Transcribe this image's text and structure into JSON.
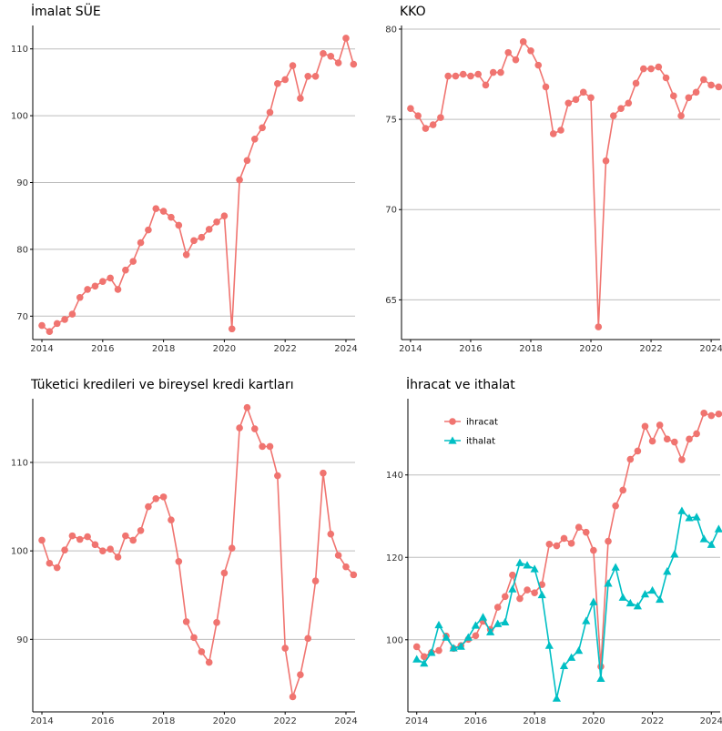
{
  "colors": {
    "ihracat": "#F07470",
    "ithalat": "#00BFC4",
    "grid": "#bdbdbd"
  },
  "chart_data": [
    {
      "type": "line",
      "title": "İmalat SÜE",
      "xlabel": "",
      "ylabel": "",
      "xlim": [
        2013.7,
        2024.3
      ],
      "ylim": [
        66.5,
        113.5
      ],
      "xticks": [
        2014,
        2016,
        2018,
        2020,
        2022,
        2024
      ],
      "yticks": [
        70,
        80,
        90,
        100,
        110
      ],
      "grid": "horizontal",
      "series": [
        {
          "color": "#F07470",
          "marker": "circle",
          "x": [
            2014.0,
            2014.25,
            2014.5,
            2014.75,
            2015.0,
            2015.25,
            2015.5,
            2015.75,
            2016.0,
            2016.25,
            2016.5,
            2016.75,
            2017.0,
            2017.25,
            2017.5,
            2017.75,
            2018.0,
            2018.25,
            2018.5,
            2018.75,
            2019.0,
            2019.25,
            2019.5,
            2019.75,
            2020.0,
            2020.25,
            2020.5,
            2020.75,
            2021.0,
            2021.25,
            2021.5,
            2021.75,
            2022.0,
            2022.25,
            2022.5,
            2022.75,
            2023.0,
            2023.25,
            2023.5,
            2023.75,
            2024.0,
            2024.25
          ],
          "values": [
            68.6,
            67.7,
            68.9,
            69.5,
            70.3,
            72.8,
            74.0,
            74.5,
            75.2,
            75.7,
            74.0,
            76.9,
            78.2,
            81.0,
            82.9,
            86.1,
            85.7,
            84.8,
            83.6,
            79.2,
            81.3,
            81.8,
            83.0,
            84.1,
            85.0,
            68.1,
            90.4,
            93.3,
            96.5,
            98.2,
            100.5,
            104.8,
            105.4,
            107.5,
            102.6,
            105.9,
            105.9,
            109.3,
            108.9,
            107.9,
            111.6,
            107.7
          ]
        }
      ]
    },
    {
      "type": "line",
      "title": "KKO",
      "xlabel": "",
      "ylabel": "",
      "xlim": [
        2013.7,
        2024.3
      ],
      "ylim": [
        62.8,
        80.2
      ],
      "xticks": [
        2014,
        2016,
        2018,
        2020,
        2022,
        2024
      ],
      "yticks": [
        65,
        70,
        75,
        80
      ],
      "grid": "horizontal",
      "series": [
        {
          "color": "#F07470",
          "marker": "circle",
          "x": [
            2014.0,
            2014.25,
            2014.5,
            2014.75,
            2015.0,
            2015.25,
            2015.5,
            2015.75,
            2016.0,
            2016.25,
            2016.5,
            2016.75,
            2017.0,
            2017.25,
            2017.5,
            2017.75,
            2018.0,
            2018.25,
            2018.5,
            2018.75,
            2019.0,
            2019.25,
            2019.5,
            2019.75,
            2020.0,
            2020.25,
            2020.5,
            2020.75,
            2021.0,
            2021.25,
            2021.5,
            2021.75,
            2022.0,
            2022.25,
            2022.5,
            2022.75,
            2023.0,
            2023.25,
            2023.5,
            2023.75,
            2024.0,
            2024.25
          ],
          "values": [
            75.6,
            75.2,
            74.5,
            74.7,
            75.1,
            77.4,
            77.4,
            77.5,
            77.4,
            77.5,
            76.9,
            77.6,
            77.6,
            78.7,
            78.3,
            79.3,
            78.8,
            78.0,
            76.8,
            74.2,
            74.4,
            75.9,
            76.1,
            76.5,
            76.2,
            63.5,
            72.7,
            75.2,
            75.6,
            75.9,
            77.0,
            77.8,
            77.8,
            77.9,
            77.3,
            76.3,
            75.2,
            76.2,
            76.5,
            77.2,
            76.9,
            76.8
          ]
        }
      ]
    },
    {
      "type": "line",
      "title": "Tüketici kredileri ve bireysel kredi kartları",
      "xlabel": "",
      "ylabel": "",
      "xlim": [
        2013.7,
        2024.3
      ],
      "ylim": [
        81.8,
        117.2
      ],
      "xticks": [
        2014,
        2016,
        2018,
        2020,
        2022,
        2024
      ],
      "yticks": [
        90,
        100,
        110
      ],
      "grid": "horizontal",
      "series": [
        {
          "color": "#F07470",
          "marker": "circle",
          "x": [
            2014.0,
            2014.25,
            2014.5,
            2014.75,
            2015.0,
            2015.25,
            2015.5,
            2015.75,
            2016.0,
            2016.25,
            2016.5,
            2016.75,
            2017.0,
            2017.25,
            2017.5,
            2017.75,
            2018.0,
            2018.25,
            2018.5,
            2018.75,
            2019.0,
            2019.25,
            2019.5,
            2019.75,
            2020.0,
            2020.25,
            2020.5,
            2020.75,
            2021.0,
            2021.25,
            2021.5,
            2021.75,
            2022.0,
            2022.25,
            2022.5,
            2022.75,
            2023.0,
            2023.25,
            2023.5,
            2023.75,
            2024.0,
            2024.25
          ],
          "values": [
            101.2,
            98.6,
            98.1,
            100.1,
            101.7,
            101.3,
            101.6,
            100.7,
            100.0,
            100.2,
            99.3,
            101.7,
            101.2,
            102.3,
            105.0,
            105.9,
            106.1,
            103.5,
            98.8,
            92.0,
            90.2,
            88.6,
            87.4,
            91.9,
            97.5,
            100.3,
            113.9,
            116.2,
            113.8,
            111.8,
            111.8,
            108.5,
            89.0,
            83.5,
            86.0,
            90.1,
            96.6,
            108.8,
            101.9,
            99.5,
            98.2,
            97.3
          ]
        }
      ]
    },
    {
      "type": "line",
      "title": "İhracat ve ithalat",
      "xlabel": "",
      "ylabel": "",
      "xlim": [
        2013.7,
        2024.3
      ],
      "ylim": [
        82.5,
        158.5
      ],
      "xticks": [
        2014,
        2016,
        2018,
        2020,
        2022,
        2024
      ],
      "yticks": [
        100,
        120,
        140
      ],
      "grid": "horizontal",
      "legend": "top-left",
      "series": [
        {
          "name": "ihracat",
          "color": "#F07470",
          "marker": "circle",
          "x": [
            2014.0,
            2014.25,
            2014.5,
            2014.75,
            2015.0,
            2015.25,
            2015.5,
            2015.75,
            2016.0,
            2016.25,
            2016.5,
            2016.75,
            2017.0,
            2017.25,
            2017.5,
            2017.75,
            2018.0,
            2018.25,
            2018.5,
            2018.75,
            2019.0,
            2019.25,
            2019.5,
            2019.75,
            2020.0,
            2020.25,
            2020.5,
            2020.75,
            2021.0,
            2021.25,
            2021.5,
            2021.75,
            2022.0,
            2022.25,
            2022.5,
            2022.75,
            2023.0,
            2023.25,
            2023.5,
            2023.75,
            2024.0,
            2024.25
          ],
          "values": [
            98.3,
            95.9,
            96.9,
            97.4,
            100.9,
            97.9,
            98.6,
            100.1,
            101.0,
            104.5,
            102.5,
            107.9,
            110.5,
            115.7,
            110.0,
            112.1,
            111.4,
            113.4,
            123.2,
            122.8,
            124.6,
            123.4,
            127.3,
            126.1,
            121.7,
            93.5,
            123.9,
            132.5,
            136.3,
            143.8,
            145.8,
            151.8,
            148.2,
            152.1,
            148.7,
            148.0,
            143.7,
            148.7,
            150.0,
            155.0,
            154.4,
            154.8
          ]
        },
        {
          "name": "ithalat",
          "color": "#00BFC4",
          "marker": "triangle",
          "x": [
            2014.0,
            2014.25,
            2014.5,
            2014.75,
            2015.0,
            2015.25,
            2015.5,
            2015.75,
            2016.0,
            2016.25,
            2016.5,
            2016.75,
            2017.0,
            2017.25,
            2017.5,
            2017.75,
            2018.0,
            2018.25,
            2018.5,
            2018.75,
            2019.0,
            2019.25,
            2019.5,
            2019.75,
            2020.0,
            2020.25,
            2020.5,
            2020.75,
            2021.0,
            2021.25,
            2021.5,
            2021.75,
            2022.0,
            2022.25,
            2022.5,
            2022.75,
            2023.0,
            2023.25,
            2023.5,
            2023.75,
            2024.0,
            2024.25
          ],
          "values": [
            95.3,
            94.3,
            96.9,
            103.6,
            100.6,
            98.0,
            98.4,
            100.6,
            103.5,
            105.5,
            101.9,
            103.9,
            104.3,
            112.3,
            118.7,
            118.1,
            117.2,
            110.9,
            98.6,
            85.8,
            93.7,
            95.7,
            97.4,
            104.6,
            109.2,
            90.6,
            113.7,
            117.6,
            110.3,
            108.9,
            108.2,
            111.1,
            112.0,
            109.8,
            116.6,
            120.8,
            131.3,
            129.6,
            129.8,
            124.5,
            123.1,
            126.9
          ]
        }
      ]
    }
  ]
}
